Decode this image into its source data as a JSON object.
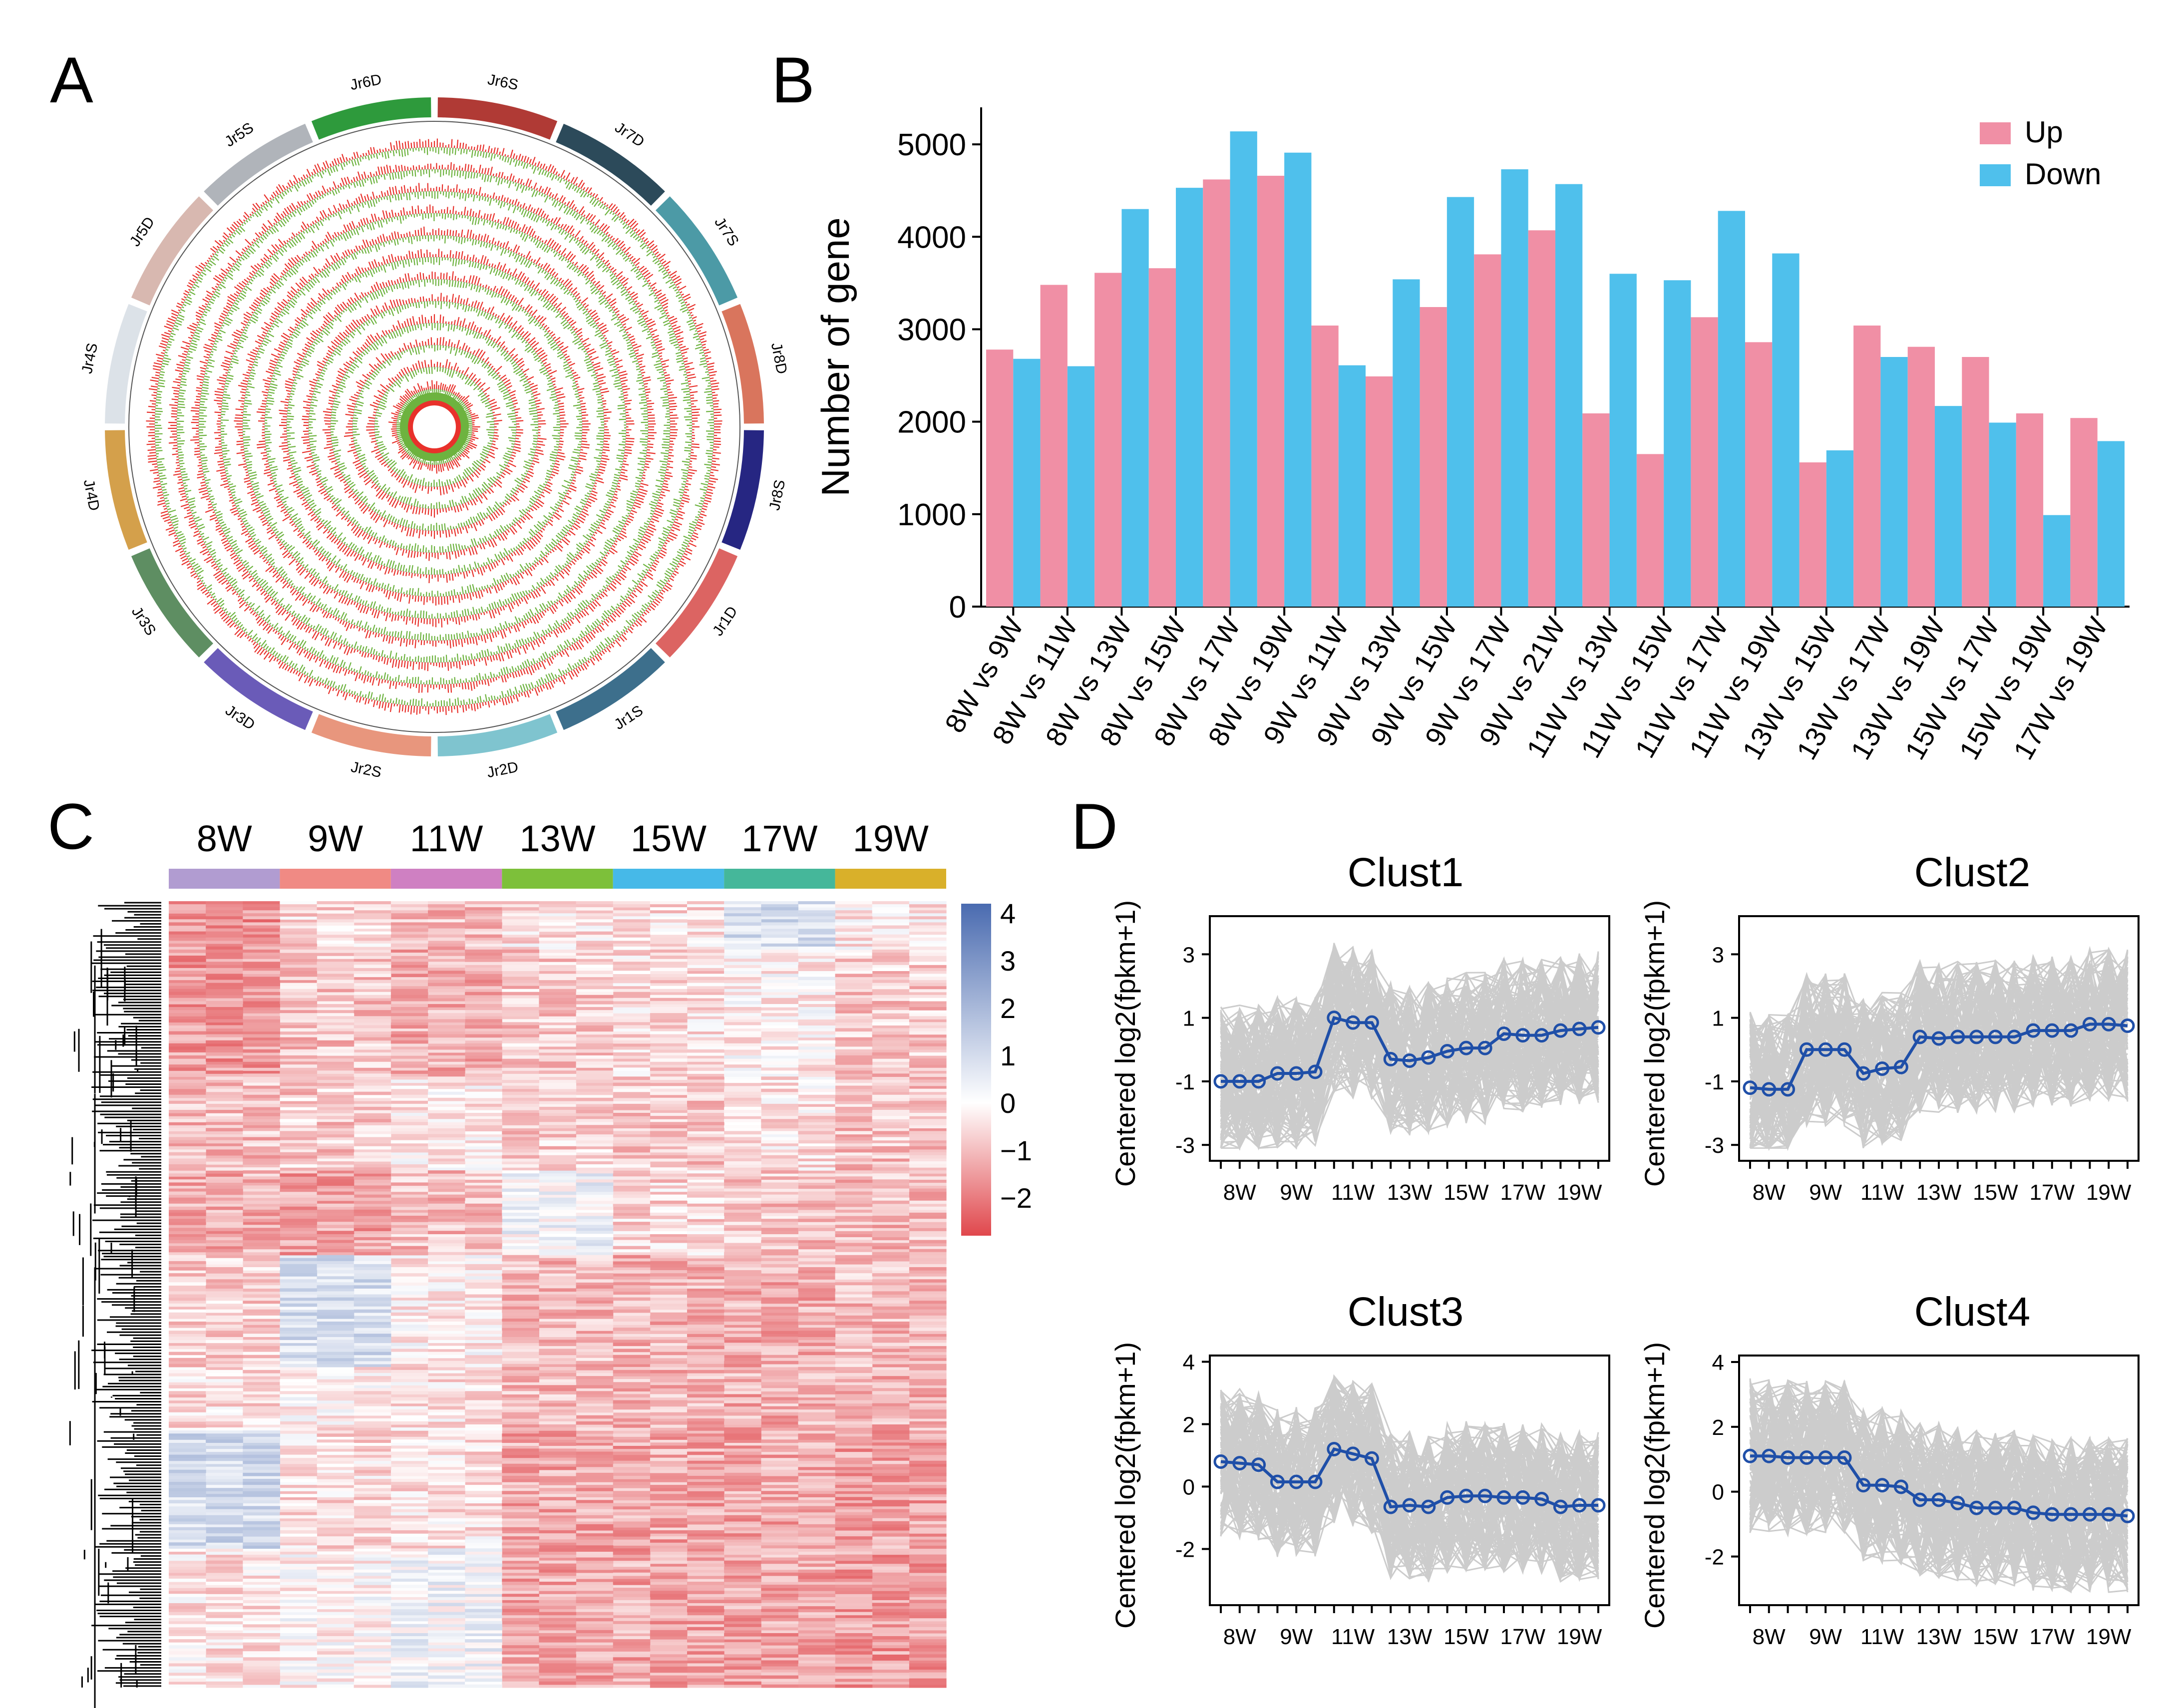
{
  "figure": {
    "panel_labels": [
      "A",
      "B",
      "C",
      "D"
    ]
  },
  "colors": {
    "up": "#F08FA5",
    "down": "#4FC0EC",
    "track_red": "#E8312B",
    "track_green": "#6DB33F",
    "cluster_line": "#1F4FA8",
    "gene_lines": "#CCCCCC",
    "heat_low": "#E0474C",
    "heat_mid": "#FFFFFF",
    "heat_high": "#4A6BB0"
  },
  "chart_data": [
    {
      "panel": "A",
      "type": "circos",
      "chromosomes": [
        {
          "name": "Jr6S",
          "color": "#B03A35"
        },
        {
          "name": "Jr7D",
          "color": "#2C4A5A"
        },
        {
          "name": "Jr7S",
          "color": "#4C9AA6"
        },
        {
          "name": "Jr8D",
          "color": "#D9755D"
        },
        {
          "name": "Jr8S",
          "color": "#262682"
        },
        {
          "name": "Jr1D",
          "color": "#DC6462"
        },
        {
          "name": "Jr1S",
          "color": "#3D6F8C"
        },
        {
          "name": "Jr2D",
          "color": "#7FC4CF"
        },
        {
          "name": "Jr2S",
          "color": "#E8967D"
        },
        {
          "name": "Jr3D",
          "color": "#6A5BB8"
        },
        {
          "name": "Jr3S",
          "color": "#5E8E62"
        },
        {
          "name": "Jr4D",
          "color": "#D4A04B"
        },
        {
          "name": "Jr4S",
          "color": "#DCE2E8"
        },
        {
          "name": "Jr5D",
          "color": "#D8B8B0"
        },
        {
          "name": "Jr5S",
          "color": "#B0B4BA"
        },
        {
          "name": "Jr6D",
          "color": "#2E9A3C"
        }
      ],
      "track_count": 12
    },
    {
      "panel": "B",
      "type": "bar",
      "ylabel": "Number of gene",
      "ylim": [
        0,
        5400
      ],
      "yticks": [
        0,
        1000,
        2000,
        3000,
        4000,
        5000
      ],
      "categories": [
        "8W vs 9W",
        "8W vs 11W",
        "8W vs 13W",
        "8W vs 15W",
        "8W vs 17W",
        "8W vs 19W",
        "9W vs 11W",
        "9W vs 13W",
        "9W vs 15W",
        "9W vs 17W",
        "9W vs 21W",
        "11W vs 13W",
        "11W vs 15W",
        "11W vs 17W",
        "11W vs 19W",
        "13W vs 15W",
        "13W vs 17W",
        "13W vs 19W",
        "15W vs 17W",
        "15W vs 19W",
        "17W vs 19W"
      ],
      "series": [
        {
          "name": "Up",
          "values": [
            2780,
            3480,
            3610,
            3660,
            4620,
            4660,
            3040,
            2490,
            3240,
            3810,
            4070,
            2090,
            1650,
            3130,
            2860,
            1560,
            3040,
            2810,
            2700,
            2090,
            2040
          ]
        },
        {
          "name": "Down",
          "values": [
            2680,
            2600,
            4300,
            4530,
            5140,
            4910,
            2610,
            3540,
            4430,
            4730,
            4570,
            3600,
            3530,
            4280,
            3820,
            1690,
            2700,
            2170,
            1990,
            990,
            1790
          ]
        }
      ],
      "legend": "top-right"
    },
    {
      "panel": "C",
      "type": "heatmap",
      "columns": [
        "8W",
        "9W",
        "11W",
        "13W",
        "15W",
        "17W",
        "19W"
      ],
      "column_colors": [
        "#B19CD1",
        "#F08A84",
        "#CF80C2",
        "#7DC03A",
        "#46B9E8",
        "#45B79A",
        "#D9B02A"
      ],
      "colorbar_ticks": [
        "4",
        "3",
        "2",
        "1",
        "0",
        "−1",
        "−2"
      ],
      "colorbar_range": [
        -2.8,
        4.2
      ]
    },
    {
      "panel": "D",
      "type": "line",
      "ylabel": "Centered log2(fpkm+1)",
      "x_labels": [
        "8W",
        "9W",
        "11W",
        "13W",
        "15W",
        "17W",
        "19W"
      ],
      "clusters": [
        {
          "title": "Clust1",
          "ylim": [
            -3.5,
            4.2
          ],
          "yticks": [
            -3,
            -1,
            1,
            3
          ],
          "values": [
            -1,
            -1,
            -1,
            -0.75,
            -0.75,
            -0.7,
            1.0,
            0.85,
            0.85,
            -0.3,
            -0.35,
            -0.25,
            -0.05,
            0.05,
            0.05,
            0.5,
            0.45,
            0.45,
            0.6,
            0.65,
            0.7
          ]
        },
        {
          "title": "Clust2",
          "ylim": [
            -3.5,
            4.2
          ],
          "yticks": [
            -3,
            -1,
            1,
            3
          ],
          "values": [
            -1.2,
            -1.25,
            -1.25,
            0.0,
            0.0,
            0.0,
            -0.75,
            -0.6,
            -0.55,
            0.4,
            0.35,
            0.4,
            0.4,
            0.4,
            0.4,
            0.6,
            0.6,
            0.6,
            0.8,
            0.8,
            0.75
          ]
        },
        {
          "title": "Clust3",
          "ylim": [
            -3.8,
            4.2
          ],
          "yticks": [
            -2,
            0,
            2,
            4
          ],
          "values": [
            0.8,
            0.75,
            0.7,
            0.15,
            0.15,
            0.15,
            1.2,
            1.05,
            0.9,
            -0.65,
            -0.6,
            -0.65,
            -0.35,
            -0.3,
            -0.3,
            -0.35,
            -0.35,
            -0.4,
            -0.65,
            -0.6,
            -0.6
          ]
        },
        {
          "title": "Clust4",
          "ylim": [
            -3.5,
            4.2
          ],
          "yticks": [
            -2,
            0,
            2,
            4
          ],
          "values": [
            1.1,
            1.1,
            1.05,
            1.05,
            1.05,
            1.05,
            0.2,
            0.2,
            0.15,
            -0.25,
            -0.25,
            -0.35,
            -0.5,
            -0.5,
            -0.5,
            -0.65,
            -0.7,
            -0.7,
            -0.7,
            -0.7,
            -0.75
          ]
        }
      ]
    }
  ]
}
